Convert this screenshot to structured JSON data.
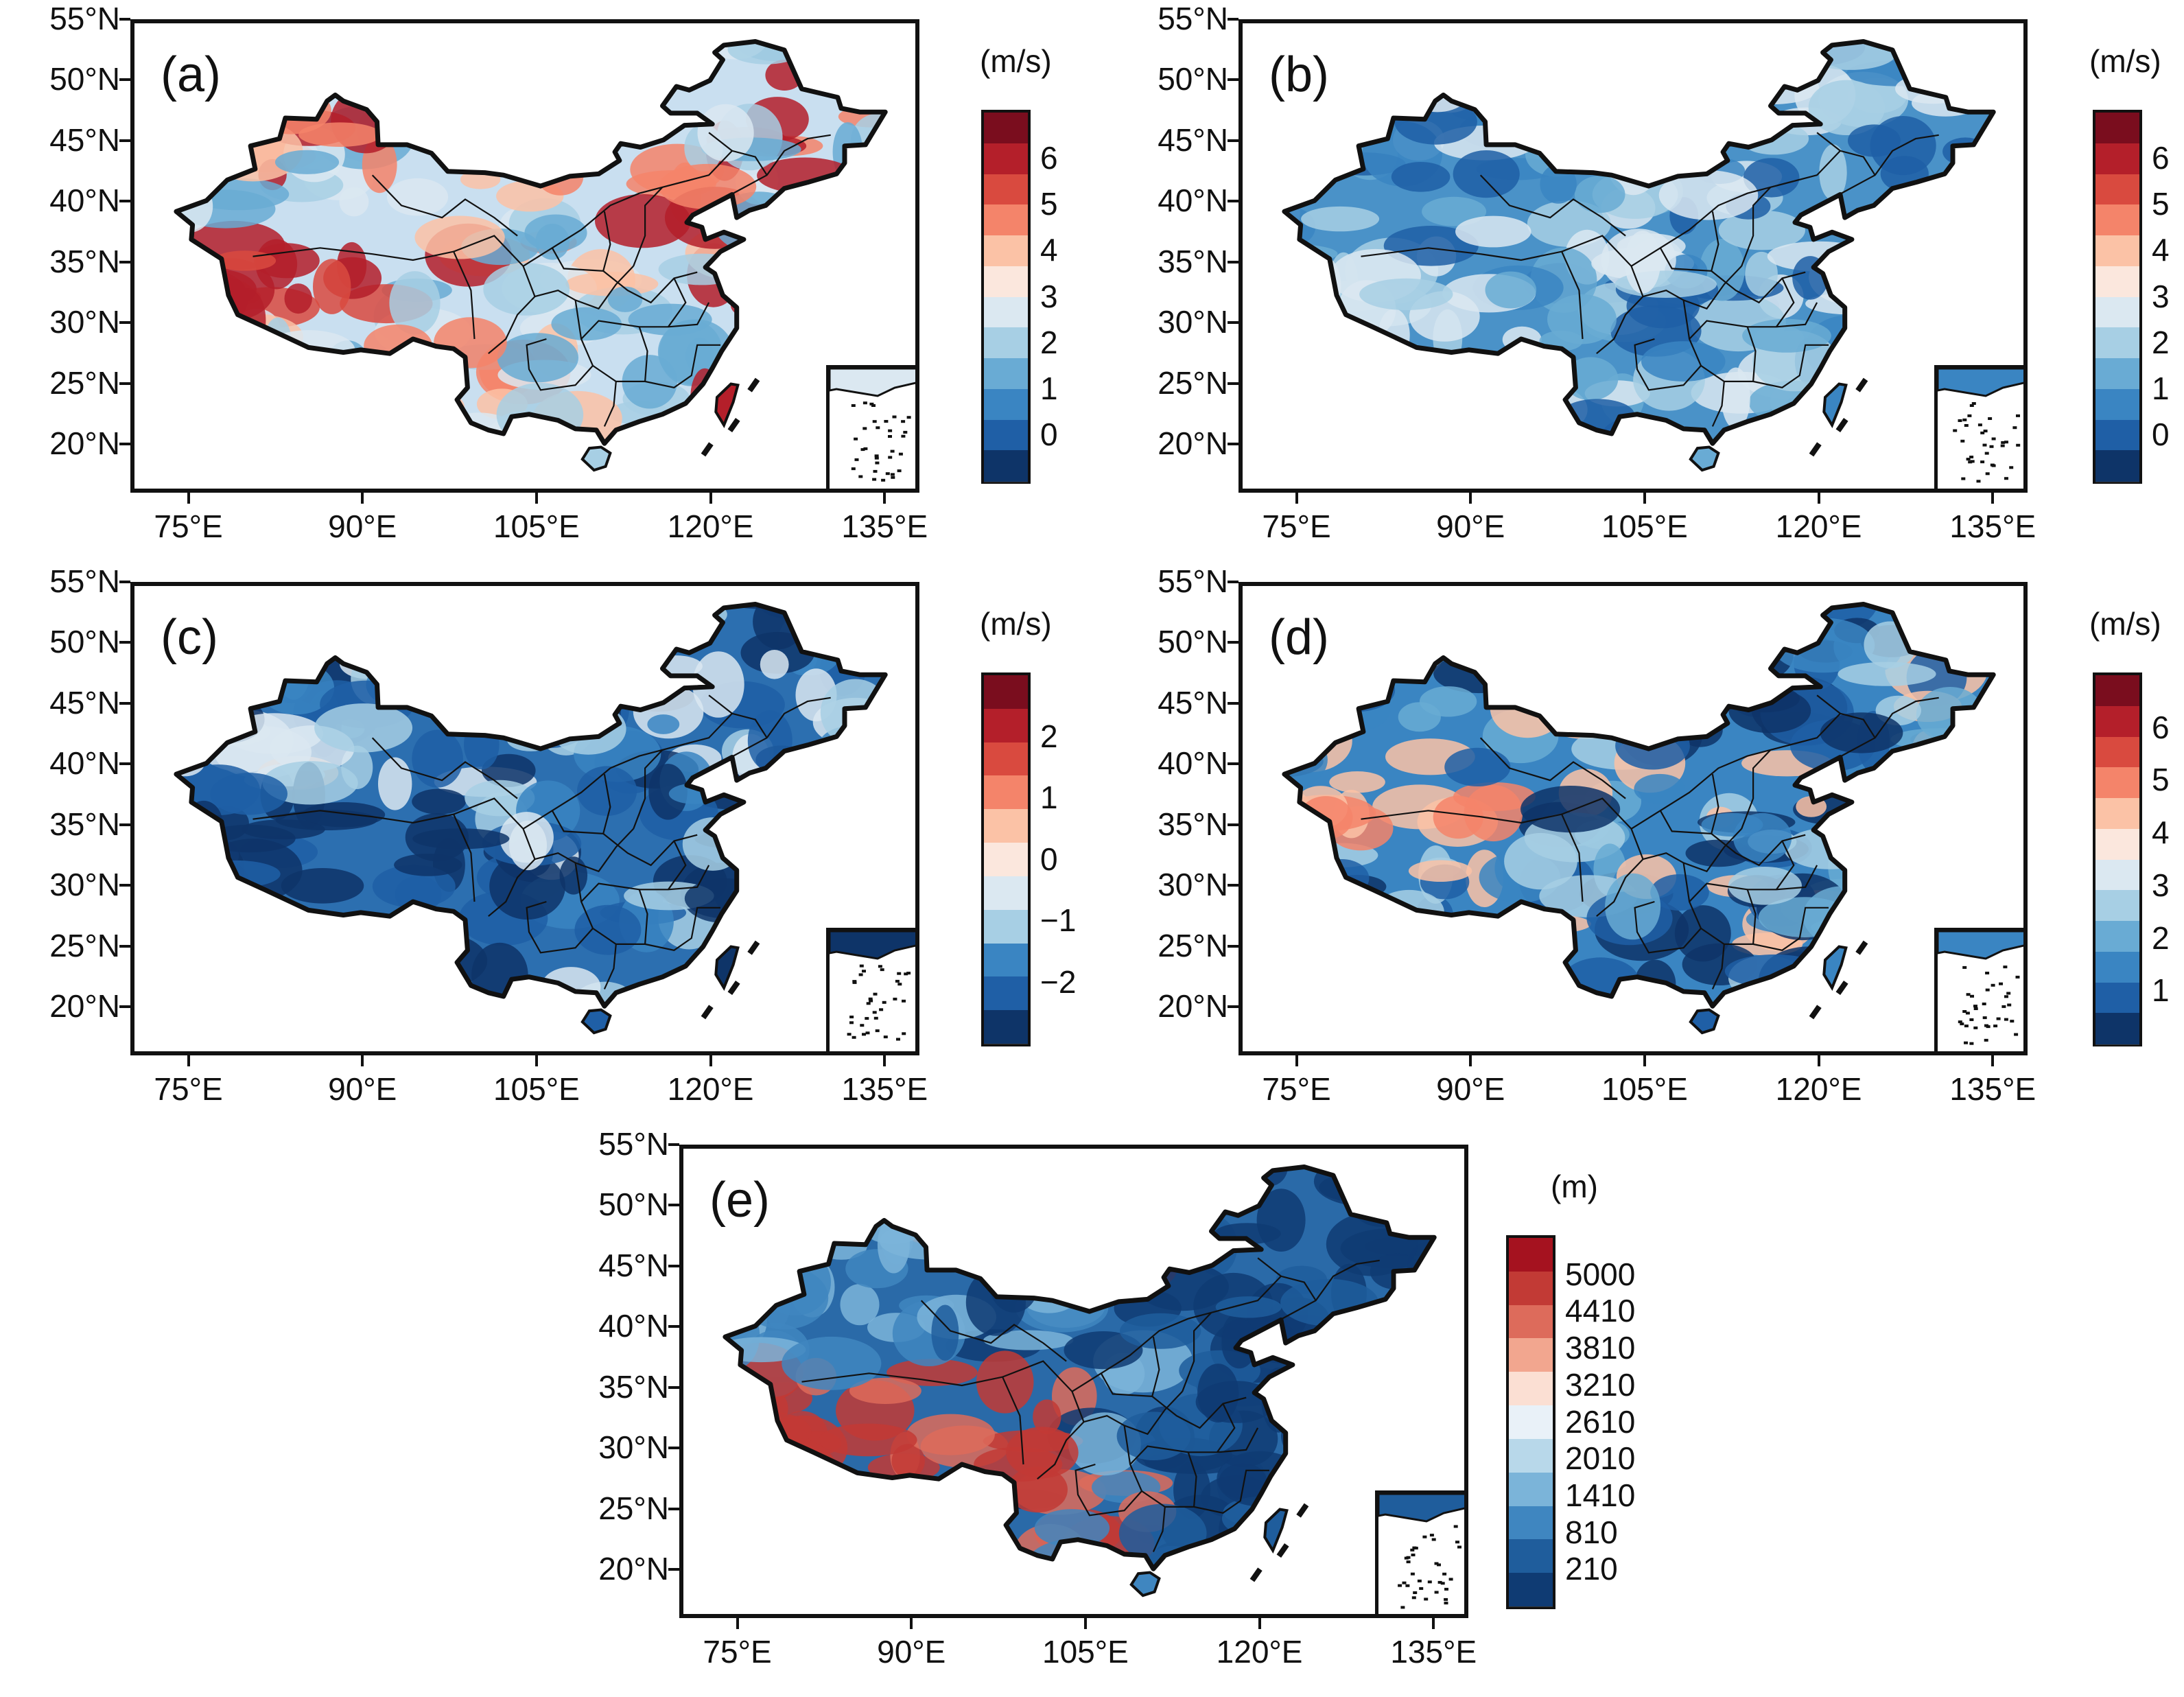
{
  "axes": {
    "lat_labels": [
      "55°N",
      "50°N",
      "45°N",
      "40°N",
      "35°N",
      "30°N",
      "25°N",
      "20°N"
    ],
    "lon_labels": [
      "75°E",
      "90°E",
      "105°E",
      "120°E",
      "135°E"
    ]
  },
  "panels": [
    {
      "id": "a",
      "label": "(a)",
      "unit": "(m/s)",
      "cbar_labels": [
        "6",
        "5",
        "4",
        "3",
        "2",
        "1",
        "0"
      ],
      "palette": [
        "#7a0d1e",
        "#b41f2a",
        "#d94a3f",
        "#f4846a",
        "#fbc2a6",
        "#fbe7dd",
        "#dbe8f1",
        "#a7cfe4",
        "#69abd4",
        "#3a85c2",
        "#1f5fa6",
        "#0e3468"
      ],
      "map_palette": [
        "#dbe8f1",
        "#a7cfe4",
        "#fbc2a6",
        "#f4846a",
        "#b41f2a",
        "#69abd4"
      ],
      "description_fill": "#c9dff0"
    },
    {
      "id": "b",
      "label": "(b)",
      "unit": "(m/s)",
      "cbar_labels": [
        "6",
        "5",
        "4",
        "3",
        "2",
        "1",
        "0"
      ],
      "palette": [
        "#7a0d1e",
        "#b41f2a",
        "#d94a3f",
        "#f4846a",
        "#fbc2a6",
        "#fbe7dd",
        "#dbe8f1",
        "#a7cfe4",
        "#69abd4",
        "#3a85c2",
        "#1f5fa6",
        "#0e3468"
      ],
      "map_palette": [
        "#3a85c2",
        "#69abd4",
        "#a7cfe4",
        "#1f5fa6",
        "#dbe8f1"
      ],
      "description_fill": "#4a92c8"
    },
    {
      "id": "c",
      "label": "(c)",
      "unit": "(m/s)",
      "cbar_labels": [
        "2",
        "1",
        "0",
        "−1",
        "−2"
      ],
      "palette": [
        "#7a0d1e",
        "#b41f2a",
        "#d94a3f",
        "#f4846a",
        "#fbc2a6",
        "#fbe7dd",
        "#dbe8f1",
        "#a7cfe4",
        "#3a85c2",
        "#1f5fa6",
        "#0e3468"
      ],
      "map_palette": [
        "#0e3468",
        "#1f5fa6",
        "#3a85c2",
        "#a7cfe4",
        "#dbe8f1"
      ],
      "description_fill": "#2c6fb0"
    },
    {
      "id": "d",
      "label": "(d)",
      "unit": "(m/s)",
      "cbar_labels": [
        "6",
        "5",
        "4",
        "3",
        "2",
        "1"
      ],
      "palette": [
        "#7a0d1e",
        "#b41f2a",
        "#d94a3f",
        "#f4846a",
        "#fbc2a6",
        "#fbe7dd",
        "#dbe8f1",
        "#a7cfe4",
        "#69abd4",
        "#3a85c2",
        "#1f5fa6",
        "#0e3468"
      ],
      "map_palette": [
        "#3a85c2",
        "#1f5fa6",
        "#69abd4",
        "#a7cfe4",
        "#fbc2a6",
        "#0e3468"
      ],
      "description_fill": "#3a85c2"
    },
    {
      "id": "e",
      "label": "(e)",
      "unit": "(m)",
      "cbar_labels": [
        "5000",
        "4410",
        "3810",
        "3210",
        "2610",
        "2010",
        "1410",
        "810",
        "210"
      ],
      "palette": [
        "#a5121f",
        "#c23a35",
        "#dd6b5b",
        "#f2a68f",
        "#fbdfd3",
        "#e9f1f8",
        "#b8d8ea",
        "#7bb4d9",
        "#3f86c0",
        "#1f5d9c",
        "#0f3b73"
      ],
      "map_palette": [
        "#1f5d9c",
        "#3f86c0",
        "#c23a35",
        "#dd6b5b",
        "#7bb4d9",
        "#0f3b73"
      ],
      "description_fill": "#2a6aa8"
    }
  ]
}
